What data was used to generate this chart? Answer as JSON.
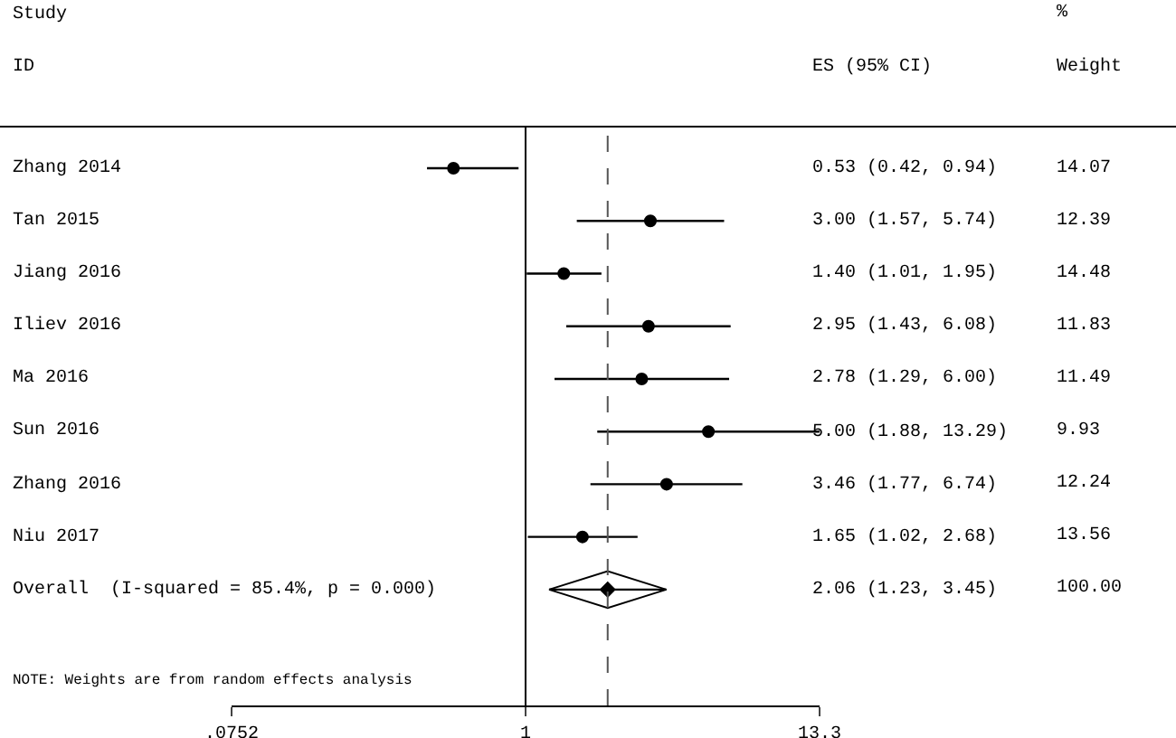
{
  "chart_data": {
    "type": "scatter",
    "orientation": "horizontal",
    "log": "x",
    "categories": [
      "Zhang 2014",
      "Tan 2015",
      "Jiang 2016",
      "Iliev 2016",
      "Ma 2016",
      "Sun 2016",
      "Zhang 2016",
      "Niu 2017",
      "Overall  (I-squared = 85.4%, p = 0.000)"
    ],
    "series": [
      {
        "color": "#000000",
        "marker": "circle",
        "values": [
          0.53,
          3.0,
          1.4,
          2.95,
          2.78,
          5.0,
          3.46,
          1.65,
          null
        ],
        "errors": [
          [
            0.42,
            0.94
          ],
          [
            1.57,
            5.74
          ],
          [
            1.01,
            1.95
          ],
          [
            1.43,
            6.08
          ],
          [
            1.29,
            6.0
          ],
          [
            1.88,
            13.29
          ],
          [
            1.77,
            6.74
          ],
          [
            1.02,
            2.68
          ],
          null
        ]
      },
      {
        "color": "#000000",
        "marker": "diamond",
        "values": [
          null,
          null,
          null,
          null,
          null,
          null,
          null,
          null,
          2.06
        ],
        "errors": [
          null,
          null,
          null,
          null,
          null,
          null,
          null,
          null,
          [
            1.23,
            3.45
          ]
        ]
      }
    ],
    "xlim": [
      0.0752,
      13.3
    ],
    "xticks": [
      {
        "value": 0.0752,
        "label": ".0752"
      },
      1,
      13.3
    ],
    "ref_lines": [
      {
        "axis": "x",
        "value": 1,
        "line_style": "solid",
        "color": "#000000"
      },
      {
        "axis": "x",
        "value": 2.06,
        "line_style": "dashed",
        "color": "#555555"
      }
    ],
    "annotations": [
      "Study",
      "ID",
      "ES (95% CI)",
      "%",
      "Weight",
      "NOTE: Weights are from random effects analysis",
      "0.53 (0.42, 0.94)",
      "3.00 (1.57, 5.74)",
      "1.40 (1.01, 1.95)",
      "2.95 (1.43, 6.08)",
      "2.78 (1.29, 6.00)",
      "5.00 (1.88, 13.29)",
      "3.46 (1.77, 6.74)",
      "1.65 (1.02, 2.68)",
      "2.06 (1.23, 3.45)",
      "14.07",
      "12.39",
      "14.48",
      "11.83",
      "11.49",
      "9.93",
      "12.24",
      "13.56",
      "100.00"
    ]
  }
}
